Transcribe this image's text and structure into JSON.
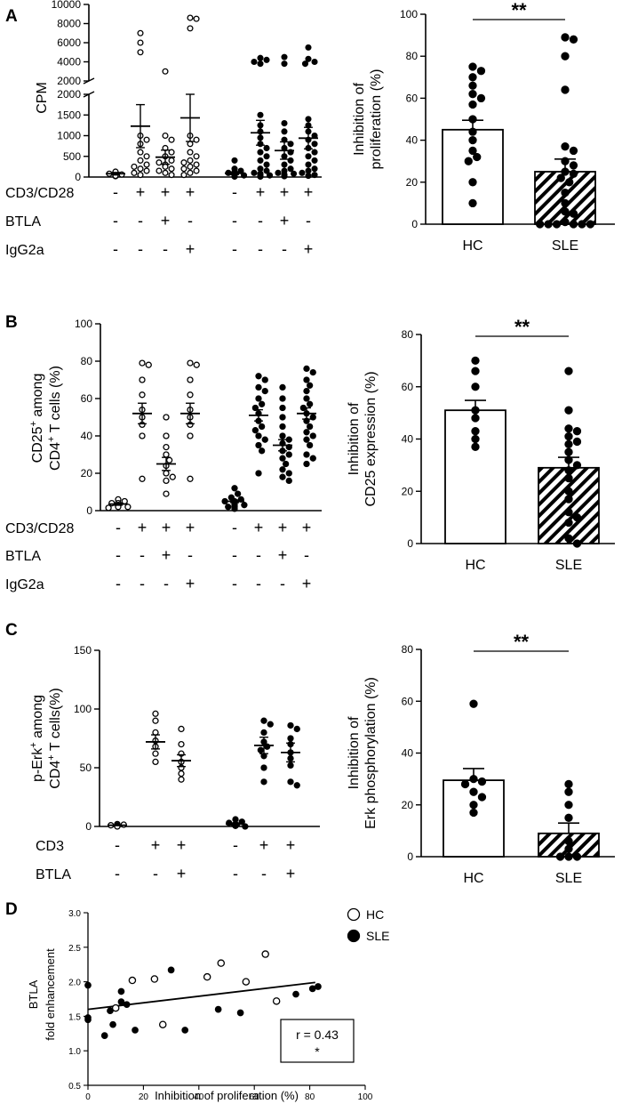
{
  "panels": {
    "A": "A",
    "B": "B",
    "C": "C",
    "D": "D"
  },
  "chart_data": [
    {
      "id": "A-left",
      "type": "scatter",
      "ylabel": "CPM",
      "y_break": {
        "lower": [
          0,
          2000
        ],
        "upper": [
          2000,
          10000
        ]
      },
      "lower_ticks": [
        "0",
        "500",
        "1000",
        "1500",
        "2000"
      ],
      "upper_ticks": [
        "2000",
        "4000",
        "6000",
        "8000",
        "10000"
      ],
      "conditions": [
        {
          "label": "CD3/CD28",
          "signs": [
            "-",
            "+",
            "+",
            "+",
            "-",
            "+",
            "+",
            "+"
          ]
        },
        {
          "label": "BTLA",
          "signs": [
            "-",
            "-",
            "+",
            "-",
            "-",
            "-",
            "+",
            "-"
          ]
        },
        {
          "label": "IgG2a",
          "signs": [
            "-",
            "-",
            "-",
            "+",
            "-",
            "-",
            "-",
            "+"
          ]
        }
      ],
      "groups": [
        {
          "filled": false,
          "mean": 80,
          "sem": 30,
          "values": [
            40,
            60,
            80,
            100,
            120,
            20,
            50,
            70,
            90,
            110,
            130,
            30
          ]
        },
        {
          "filled": false,
          "mean": 1230,
          "sem": 520,
          "values": [
            7000,
            6000,
            5000,
            1000,
            900,
            800,
            600,
            500,
            400,
            300,
            200,
            150,
            100,
            250,
            50
          ]
        },
        {
          "filled": false,
          "mean": 480,
          "sem": 170,
          "values": [
            3000,
            1000,
            900,
            700,
            600,
            500,
            400,
            300,
            200,
            100,
            50,
            150,
            250,
            350
          ]
        },
        {
          "filled": false,
          "mean": 1430,
          "sem": 570,
          "values": [
            8600,
            8500,
            7500,
            1000,
            900,
            800,
            600,
            500,
            400,
            300,
            250,
            200,
            150,
            100,
            50,
            350
          ]
        },
        {
          "filled": true,
          "mean": 90,
          "sem": 30,
          "values": [
            400,
            200,
            150,
            100,
            80,
            60,
            40,
            30,
            20,
            10,
            120,
            90,
            70,
            50
          ]
        },
        {
          "filled": true,
          "mean": 1070,
          "sem": 300,
          "values": [
            4400,
            4200,
            4000,
            3800,
            1500,
            1250,
            1100,
            950,
            800,
            700,
            600,
            500,
            400,
            300,
            200,
            150,
            100,
            80,
            60,
            50,
            40,
            30,
            20,
            10
          ]
        },
        {
          "filled": true,
          "mean": 640,
          "sem": 210,
          "values": [
            4500,
            3800,
            1300,
            1100,
            900,
            800,
            700,
            600,
            500,
            400,
            300,
            200,
            150,
            100,
            80,
            60,
            40,
            20
          ]
        },
        {
          "filled": true,
          "mean": 940,
          "sem": 260,
          "values": [
            5500,
            4300,
            4000,
            3800,
            1400,
            1250,
            1100,
            1000,
            900,
            800,
            700,
            600,
            500,
            400,
            300,
            200,
            150,
            100,
            50,
            30
          ]
        }
      ]
    },
    {
      "id": "A-right",
      "type": "bar",
      "ylabel": "Inhibition of proliferation (%)",
      "ylabel_lines": [
        "Inhibition of",
        "proliferation (%)"
      ],
      "categories": [
        "HC",
        "SLE"
      ],
      "ylim": [
        0,
        100
      ],
      "yticks": [
        "0",
        "20",
        "40",
        "60",
        "80",
        "100"
      ],
      "means": [
        45,
        25
      ],
      "sems": [
        4.5,
        6
      ],
      "significance": "**",
      "points": [
        [
          75,
          73,
          70,
          66,
          62,
          60,
          57,
          50,
          44,
          40,
          35,
          32,
          30,
          20,
          10
        ],
        [
          89,
          88,
          80,
          64,
          37,
          35,
          30,
          28,
          25,
          24,
          22,
          20,
          15,
          10,
          6,
          5,
          1,
          0,
          0,
          0,
          0,
          0,
          0
        ]
      ]
    },
    {
      "id": "B-left",
      "type": "scatter",
      "ylabel": "CD25+ among CD4+ T cells (%)",
      "ylim": [
        0,
        100
      ],
      "yticks": [
        "0",
        "20",
        "40",
        "60",
        "80",
        "100"
      ],
      "conditions": [
        {
          "label": "CD3/CD28",
          "signs": [
            "-",
            "+",
            "+",
            "+",
            "-",
            "+",
            "+",
            "+"
          ]
        },
        {
          "label": "BTLA",
          "signs": [
            "-",
            "-",
            "+",
            "-",
            "-",
            "-",
            "+",
            "-"
          ]
        },
        {
          "label": "IgG2a",
          "signs": [
            "-",
            "-",
            "-",
            "+",
            "-",
            "-",
            "-",
            "+"
          ]
        }
      ],
      "groups": [
        {
          "filled": false,
          "mean": 3.5,
          "sem": 0.6,
          "values": [
            6,
            5,
            4,
            4,
            3,
            3,
            2,
            2,
            1.5
          ]
        },
        {
          "filled": false,
          "mean": 52,
          "sem": 5.5,
          "values": [
            79,
            78,
            70,
            62,
            54,
            50,
            46,
            40,
            17
          ]
        },
        {
          "filled": false,
          "mean": 25,
          "sem": 3.5,
          "values": [
            50,
            40,
            34,
            30,
            27,
            24,
            20,
            18,
            16,
            9
          ]
        },
        {
          "filled": false,
          "mean": 52,
          "sem": 5.5,
          "values": [
            79,
            78,
            70,
            62,
            54,
            50,
            46,
            40,
            17
          ]
        },
        {
          "filled": true,
          "mean": 5,
          "sem": 0.7,
          "values": [
            12,
            9,
            7,
            6,
            5,
            5,
            4,
            4,
            3,
            3,
            2,
            2,
            1
          ]
        },
        {
          "filled": true,
          "mean": 51,
          "sem": 3,
          "values": [
            72,
            70,
            66,
            64,
            60,
            57,
            55,
            52,
            48,
            45,
            43,
            40,
            38,
            35,
            32,
            20
          ]
        },
        {
          "filled": true,
          "mean": 35,
          "sem": 3,
          "values": [
            66,
            60,
            55,
            50,
            45,
            40,
            38,
            36,
            34,
            32,
            30,
            28,
            25,
            22,
            20,
            18,
            16
          ]
        },
        {
          "filled": true,
          "mean": 52,
          "sem": 3,
          "values": [
            76,
            74,
            70,
            67,
            64,
            60,
            57,
            55,
            52,
            50,
            48,
            45,
            42,
            40,
            38,
            35,
            30,
            28,
            25
          ]
        }
      ]
    },
    {
      "id": "B-right",
      "type": "bar",
      "ylabel": "Inhibition of CD25 expression (%)",
      "ylabel_lines": [
        "Inhibition of",
        "CD25 expression (%)"
      ],
      "categories": [
        "HC",
        "SLE"
      ],
      "ylim": [
        0,
        80
      ],
      "yticks": [
        "0",
        "20",
        "40",
        "60",
        "80"
      ],
      "means": [
        51,
        29
      ],
      "sems": [
        3.8,
        4
      ],
      "significance": "**",
      "points": [
        [
          70,
          66,
          60,
          51,
          48,
          43,
          40,
          37
        ],
        [
          66,
          51,
          44,
          43,
          41,
          39,
          38,
          35,
          32,
          30,
          28,
          25,
          20,
          17,
          12,
          10,
          8,
          2,
          0
        ]
      ]
    },
    {
      "id": "C-left",
      "type": "scatter",
      "ylabel": "p-Erk+ among CD4+ T cells(%)",
      "ylim": [
        0,
        150
      ],
      "yticks": [
        "0",
        "50",
        "100",
        "150"
      ],
      "conditions": [
        {
          "label": "CD3",
          "signs": [
            "-",
            "+",
            "+",
            "-",
            "+",
            "+"
          ]
        },
        {
          "label": "BTLA",
          "signs": [
            "-",
            "-",
            "+",
            "-",
            "-",
            "+"
          ]
        }
      ],
      "groups": [
        {
          "filled": false,
          "mean": 1,
          "sem": 0.3,
          "values": [
            2,
            1.5,
            1,
            1,
            0.5,
            0.5,
            0
          ]
        },
        {
          "filled": false,
          "mean": 72,
          "sem": 6,
          "values": [
            96,
            90,
            80,
            73,
            68,
            62,
            55
          ]
        },
        {
          "filled": false,
          "mean": 56,
          "sem": 5,
          "values": [
            83,
            70,
            62,
            55,
            50,
            45,
            40
          ]
        },
        {
          "filled": true,
          "mean": 2,
          "sem": 1,
          "values": [
            6,
            4,
            3,
            2,
            1,
            1,
            0.5,
            0
          ]
        },
        {
          "filled": true,
          "mean": 69,
          "sem": 7,
          "values": [
            90,
            87,
            80,
            72,
            68,
            65,
            60,
            50,
            38
          ]
        },
        {
          "filled": true,
          "mean": 63,
          "sem": 8,
          "values": [
            86,
            83,
            75,
            70,
            63,
            58,
            52,
            38,
            35
          ]
        }
      ]
    },
    {
      "id": "C-right",
      "type": "bar",
      "ylabel": "Inhibition of Erk phosphorylation (%)",
      "ylabel_lines": [
        "Inhibition of",
        "Erk phosphorylation (%)"
      ],
      "categories": [
        "HC",
        "SLE"
      ],
      "ylim": [
        0,
        80
      ],
      "yticks": [
        "0",
        "20",
        "40",
        "60",
        "80"
      ],
      "means": [
        29.5,
        9
      ],
      "sems": [
        4.5,
        4
      ],
      "significance": "**",
      "points": [
        [
          59,
          30,
          29,
          28,
          25,
          23,
          20,
          17
        ],
        [
          28,
          25,
          20,
          15,
          6,
          3,
          0,
          0,
          0
        ]
      ]
    },
    {
      "id": "D",
      "type": "scatter",
      "xlabel": "Inhibition of proliferation (%)",
      "ylabel": "BTLA fold enhancement",
      "ylabel_lines": [
        "BTLA",
        "fold enhancement"
      ],
      "xlim": [
        0,
        100
      ],
      "ylim": [
        0.5,
        3.0
      ],
      "xticks": [
        "0",
        "20",
        "40",
        "60",
        "80",
        "100"
      ],
      "yticks": [
        "0.5",
        "1.0",
        "1.5",
        "2.0",
        "2.5",
        "3.0"
      ],
      "legend": [
        {
          "name": "HC",
          "filled": false
        },
        {
          "name": "SLE",
          "filled": true
        }
      ],
      "series": [
        {
          "name": "HC",
          "filled": false,
          "points": [
            [
              10,
              1.62
            ],
            [
              16,
              2.02
            ],
            [
              24,
              2.04
            ],
            [
              27,
              1.38
            ],
            [
              43,
              2.07
            ],
            [
              48,
              2.27
            ],
            [
              57,
              2.0
            ],
            [
              64,
              2.4
            ],
            [
              68,
              1.72
            ]
          ]
        },
        {
          "name": "SLE",
          "filled": true,
          "points": [
            [
              0,
              1.95
            ],
            [
              0,
              1.48
            ],
            [
              0,
              1.45
            ],
            [
              6,
              1.22
            ],
            [
              8,
              1.58
            ],
            [
              9,
              1.38
            ],
            [
              12,
              1.86
            ],
            [
              12,
              1.71
            ],
            [
              14,
              1.67
            ],
            [
              17,
              1.3
            ],
            [
              30,
              2.17
            ],
            [
              35,
              1.3
            ],
            [
              47,
              1.6
            ],
            [
              55,
              1.55
            ],
            [
              75,
              1.82
            ],
            [
              81,
              1.9
            ],
            [
              83,
              1.93
            ]
          ]
        }
      ],
      "fit": {
        "x0": 0,
        "y0": 1.6,
        "x1": 82,
        "y1": 1.99
      },
      "stat_r": "r = 0.43",
      "stat_sig": "*"
    }
  ]
}
